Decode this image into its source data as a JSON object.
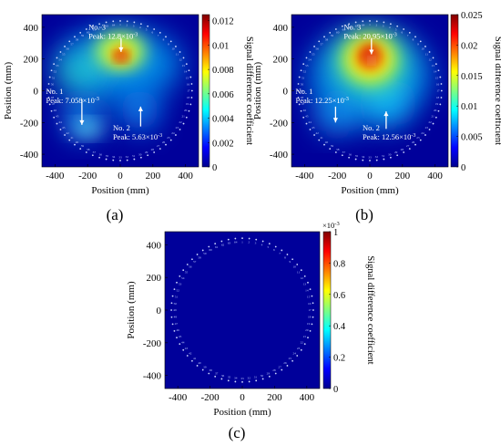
{
  "chart_data": [
    {
      "type": "heatmap",
      "panel_label": "(a)",
      "xlabel": "Position (mm)",
      "ylabel": "Position (mm)",
      "xlim": [
        -480,
        480
      ],
      "ylim": [
        -480,
        480
      ],
      "xticks": [
        -400,
        -200,
        0,
        200,
        400
      ],
      "yticks": [
        -400,
        -200,
        0,
        200,
        400
      ],
      "colorbar": {
        "label": "Signal difference coefficient",
        "range": [
          0,
          0.0125
        ],
        "ticks": [
          "0",
          "0.002",
          "0.004",
          "0.006",
          "0.008",
          "0.01",
          "0.012"
        ],
        "exponent_label": ""
      },
      "sensor_count": 64,
      "sensor_ring_radius_mm": 440,
      "annotations": [
        {
          "name": "No. 1",
          "peak_text": "Peak: 7.058×10",
          "exponent": "-3",
          "label_x": -455,
          "label_y": -20,
          "arrow_from": [
            -235,
            -55
          ],
          "arrow_to": [
            -235,
            -215
          ]
        },
        {
          "name": "No. 2",
          "peak_text": "Peak: 5.63×10",
          "exponent": "-3",
          "label_x": -45,
          "label_y": -250,
          "arrow_from": [
            125,
            -225
          ],
          "arrow_to": [
            125,
            -100
          ]
        },
        {
          "name": "No. 3",
          "peak_text": "Peak: 12.8×10",
          "exponent": "-3",
          "label_x": -195,
          "label_y": 385,
          "arrow_from": [
            5,
            330
          ],
          "arrow_to": [
            5,
            245
          ]
        }
      ]
    },
    {
      "type": "heatmap",
      "panel_label": "(b)",
      "xlabel": "Position (mm)",
      "ylabel": "Position (mm)",
      "xlim": [
        -480,
        480
      ],
      "ylim": [
        -480,
        480
      ],
      "xticks": [
        -400,
        -200,
        0,
        200,
        400
      ],
      "yticks": [
        -400,
        -200,
        0,
        200,
        400
      ],
      "colorbar": {
        "label": "Signal difference coefficient",
        "range": [
          0,
          0.025
        ],
        "ticks": [
          "0",
          "0.005",
          "0.01",
          "0.015",
          "0.02",
          "0.025"
        ],
        "exponent_label": ""
      },
      "sensor_count": 64,
      "sensor_ring_radius_mm": 440,
      "annotations": [
        {
          "name": "No. 1",
          "peak_text": "Peak: 12.25×10",
          "exponent": "-3",
          "label_x": -455,
          "label_y": -20,
          "arrow_from": [
            -210,
            -100
          ],
          "arrow_to": [
            -210,
            -200
          ]
        },
        {
          "name": "No. 2",
          "peak_text": "Peak: 12.56×10",
          "exponent": "-3",
          "label_x": -45,
          "label_y": -250,
          "arrow_from": [
            100,
            -240
          ],
          "arrow_to": [
            100,
            -130
          ]
        },
        {
          "name": "No. 3",
          "peak_text": "Peak: 20.95×10",
          "exponent": "-3",
          "label_x": -160,
          "label_y": 385,
          "arrow_from": [
            10,
            330
          ],
          "arrow_to": [
            10,
            230
          ]
        }
      ]
    },
    {
      "type": "heatmap",
      "panel_label": "(c)",
      "xlabel": "Position (mm)",
      "ylabel": "Position (mm)",
      "xlim": [
        -480,
        480
      ],
      "ylim": [
        -480,
        480
      ],
      "xticks": [
        -400,
        -200,
        0,
        200,
        400
      ],
      "yticks": [
        -400,
        -200,
        0,
        200,
        400
      ],
      "colorbar": {
        "label": "Signal difference coefficient",
        "range": [
          0,
          1
        ],
        "ticks": [
          "0",
          "0.2",
          "0.4",
          "0.6",
          "0.8",
          "1"
        ],
        "exponent_label": "×10",
        "exponent": "-3"
      },
      "sensor_count": 64,
      "sensor_ring_radius_mm": 440,
      "annotations": []
    }
  ]
}
